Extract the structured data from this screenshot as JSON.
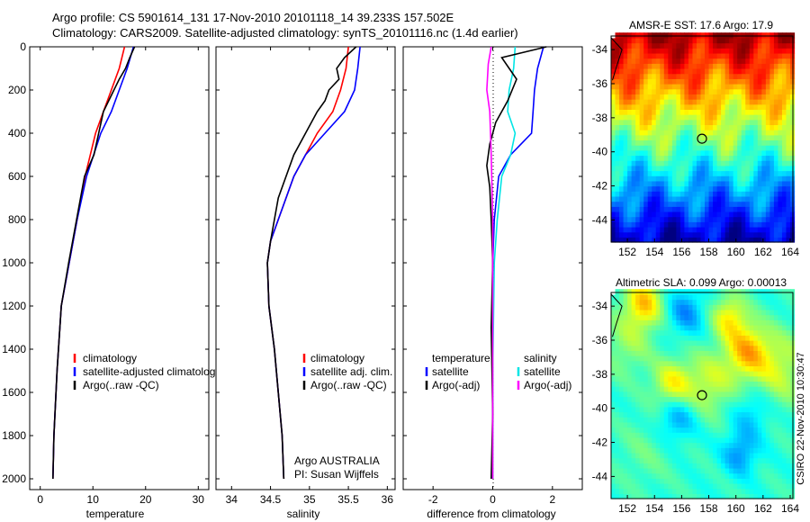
{
  "header": {
    "line1": "Argo profile: CS 5901614_131 17-Nov-2010 20101118_14 39.233S 157.502E",
    "line2": "Climatology: CARS2009. Satellite-adjusted climatology: synTS_20101116.nc (1.4d earlier)"
  },
  "credit": "CSIRO 22-Nov-2010 10:30:47",
  "colors": {
    "climatology": "#ff0000",
    "satellite": "#0000ff",
    "argo": "#000000",
    "sat_salinity": "#00e5e5",
    "argo_salinity": "#ff00ff"
  },
  "chart_data": [
    {
      "type": "line",
      "xlabel": "temperature",
      "ylabel": "",
      "xlim": [
        -2,
        32
      ],
      "ylim": [
        2050,
        0
      ],
      "xticks": [
        0,
        10,
        20,
        30
      ],
      "yticks": [
        0,
        200,
        400,
        600,
        800,
        1000,
        1200,
        1400,
        1600,
        1800,
        2000
      ],
      "legend": [
        "climatology",
        "satellite-adjusted climatology",
        "Argo(..raw -QC)"
      ],
      "series": [
        {
          "name": "climatology",
          "color": "#ff0000",
          "x": [
            16.0,
            15.0,
            13.5,
            12.0,
            10.5,
            8.5,
            7.0,
            5.5,
            4.0,
            3.2,
            2.6,
            2.4
          ],
          "y": [
            0,
            100,
            200,
            300,
            400,
            600,
            800,
            1000,
            1200,
            1500,
            1800,
            2000
          ]
        },
        {
          "name": "satellite-adjusted climatology",
          "color": "#0000ff",
          "x": [
            17.7,
            16.5,
            15.0,
            13.5,
            11.5,
            8.8,
            7.0,
            5.5,
            4.0,
            3.2,
            2.6,
            2.4
          ],
          "y": [
            0,
            100,
            200,
            300,
            400,
            600,
            800,
            1000,
            1200,
            1500,
            1800,
            2000
          ]
        },
        {
          "name": "Argo(..raw -QC)",
          "color": "#000000",
          "x": [
            17.9,
            17.0,
            16.2,
            15.0,
            14.0,
            12.0,
            10.2,
            8.4,
            6.9,
            5.4,
            4.0,
            3.2,
            2.6,
            2.4
          ],
          "y": [
            0,
            50,
            100,
            150,
            200,
            300,
            500,
            600,
            800,
            1000,
            1200,
            1500,
            1800,
            2000
          ]
        }
      ]
    },
    {
      "type": "line",
      "xlabel": "salinity",
      "ylabel": "",
      "xlim": [
        33.8,
        36.1
      ],
      "ylim": [
        2050,
        0
      ],
      "xticks": [
        34,
        34.5,
        35,
        35.5,
        36
      ],
      "legend": [
        "climatology",
        "satellite adj. clim.",
        "Argo(..raw -QC)"
      ],
      "annotation": [
        "Argo AUSTRALIA",
        "PI: Susan Wijffels"
      ],
      "series": [
        {
          "name": "climatology",
          "color": "#ff0000",
          "x": [
            35.5,
            35.47,
            35.4,
            35.3,
            35.1,
            34.95,
            34.8,
            34.6,
            34.5,
            34.46,
            34.48,
            34.55,
            34.6,
            34.65,
            34.67
          ],
          "y": [
            0,
            100,
            200,
            300,
            400,
            500,
            600,
            800,
            900,
            1000,
            1200,
            1400,
            1600,
            1800,
            2000
          ]
        },
        {
          "name": "satellite adj. clim.",
          "color": "#0000ff",
          "x": [
            35.65,
            35.62,
            35.58,
            35.45,
            35.2,
            34.95,
            34.8,
            34.6,
            34.5,
            34.46,
            34.48,
            34.55,
            34.6,
            34.65,
            34.67
          ],
          "y": [
            0,
            100,
            200,
            300,
            400,
            500,
            600,
            800,
            900,
            1000,
            1200,
            1400,
            1600,
            1800,
            2000
          ]
        },
        {
          "name": "Argo(..raw -QC)",
          "color": "#000000",
          "x": [
            35.6,
            35.45,
            35.35,
            35.38,
            35.25,
            35.2,
            35.1,
            34.95,
            34.8,
            34.6,
            34.5,
            34.46,
            34.48,
            34.55,
            34.6,
            34.65,
            34.67
          ],
          "y": [
            0,
            50,
            100,
            150,
            200,
            250,
            300,
            400,
            500,
            700,
            900,
            1000,
            1200,
            1400,
            1600,
            1800,
            2000
          ]
        }
      ]
    },
    {
      "type": "line",
      "xlabel": "difference from climatology",
      "ylabel": "",
      "xlim": [
        -3,
        3
      ],
      "ylim": [
        2050,
        0
      ],
      "xticks": [
        -2,
        0,
        2
      ],
      "legend_left_title": "temperature",
      "legend_right_title": "salinity",
      "legend": [
        "satellite",
        "Argo(-adj)",
        "satellite",
        "Argo(-adj)"
      ],
      "series": [
        {
          "name": "temperature satellite",
          "color": "#0000ff",
          "x": [
            1.7,
            1.5,
            1.4,
            1.35,
            1.3,
            0.6,
            0.2,
            0.05,
            0.0,
            0.0,
            0.0
          ],
          "y": [
            0,
            100,
            200,
            300,
            400,
            500,
            600,
            800,
            1000,
            1500,
            2000
          ]
        },
        {
          "name": "salinity satellite",
          "color": "#00e5e5",
          "x": [
            0.75,
            0.7,
            0.55,
            0.5,
            0.75,
            0.6,
            0.3,
            0.15,
            0.05,
            0.0,
            0.0
          ],
          "y": [
            0,
            100,
            200,
            300,
            400,
            500,
            600,
            800,
            1000,
            1500,
            2000
          ]
        },
        {
          "name": "temperature Argo(-adj)",
          "color": "#000000",
          "x": [
            1.8,
            0.3,
            0.8,
            0.5,
            0.1,
            -0.1,
            -0.2,
            -0.1,
            -0.05,
            0.0,
            -0.05,
            0.0,
            -0.05
          ],
          "y": [
            0,
            50,
            150,
            250,
            350,
            450,
            550,
            650,
            800,
            1000,
            1300,
            1700,
            2000
          ]
        },
        {
          "name": "salinity Argo(-adj)",
          "color": "#ff00ff",
          "x": [
            -0.05,
            -0.15,
            -0.2,
            -0.1,
            -0.05,
            0.0,
            0.0,
            0.0,
            0.0
          ],
          "y": [
            0,
            80,
            200,
            300,
            500,
            800,
            1200,
            1600,
            2000
          ]
        }
      ]
    },
    {
      "type": "heatmap",
      "title": "AMSR-E SST: 17.6 Argo: 17.9",
      "xticks": [
        152,
        154,
        156,
        158,
        160,
        162,
        164
      ],
      "yticks": [
        -34,
        -36,
        -38,
        -40,
        -42,
        -44
      ],
      "xlim": [
        150.8,
        164.2
      ],
      "ylim": [
        -45.3,
        -33.2
      ],
      "marker": {
        "lon": 157.5,
        "lat": -39.23
      }
    },
    {
      "type": "heatmap",
      "title": "Altimetric SLA: 0.099 Argo: 0.00013",
      "xticks": [
        152,
        154,
        156,
        158,
        160,
        162,
        164
      ],
      "yticks": [
        -34,
        -36,
        -38,
        -40,
        -42,
        -44
      ],
      "xlim": [
        150.8,
        164.2
      ],
      "ylim": [
        -45.3,
        -33.2
      ],
      "marker": {
        "lon": 157.5,
        "lat": -39.23
      }
    }
  ]
}
